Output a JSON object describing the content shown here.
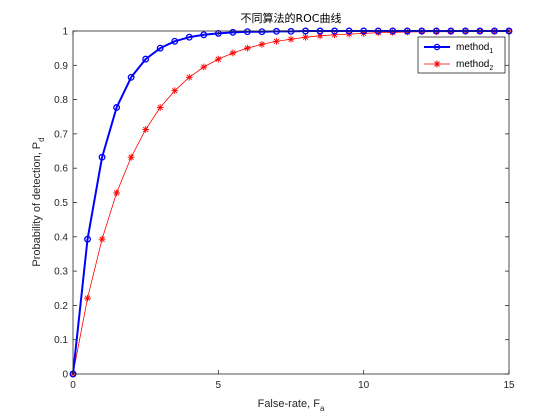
{
  "chart_data": {
    "type": "line",
    "title": "不同算法的ROC曲线",
    "xlabel": "False-rate,  F",
    "xlabel_sub": "a",
    "ylabel": "Probability of detection,  P",
    "ylabel_sub": "d",
    "xlim": [
      0,
      15
    ],
    "ylim": [
      0,
      1
    ],
    "xticks": [
      0,
      5,
      10,
      15
    ],
    "yticks": [
      0,
      0.1,
      0.2,
      0.3,
      0.4,
      0.5,
      0.6,
      0.7,
      0.8,
      0.9,
      1
    ],
    "grid": false,
    "legend_position": "top-right",
    "x": [
      0,
      0.5,
      1,
      1.5,
      2,
      2.5,
      3,
      3.5,
      4,
      4.5,
      5,
      5.5,
      6,
      6.5,
      7,
      7.5,
      8,
      8.5,
      9,
      9.5,
      10,
      10.5,
      11,
      11.5,
      12,
      12.5,
      13,
      13.5,
      14,
      14.5,
      15
    ],
    "series": [
      {
        "name": "method",
        "name_sub": "1",
        "color": "#0000ff",
        "marker": "circle",
        "line_width": "thick",
        "values": [
          0,
          0.393,
          0.632,
          0.777,
          0.865,
          0.918,
          0.95,
          0.97,
          0.982,
          0.989,
          0.993,
          0.996,
          0.998,
          0.998,
          0.999,
          0.999,
          1.0,
          1.0,
          1.0,
          1.0,
          1.0,
          1.0,
          1.0,
          1.0,
          1.0,
          1.0,
          1.0,
          1.0,
          1.0,
          1.0,
          1.0
        ]
      },
      {
        "name": "method",
        "name_sub": "2",
        "color": "#ff0000",
        "marker": "asterisk",
        "line_width": "thin",
        "values": [
          0,
          0.221,
          0.393,
          0.528,
          0.632,
          0.713,
          0.777,
          0.826,
          0.865,
          0.895,
          0.918,
          0.936,
          0.95,
          0.961,
          0.97,
          0.976,
          0.982,
          0.986,
          0.989,
          0.991,
          0.993,
          0.995,
          0.996,
          0.997,
          0.998,
          0.998,
          0.998,
          0.999,
          0.999,
          0.999,
          1.0
        ]
      }
    ]
  }
}
